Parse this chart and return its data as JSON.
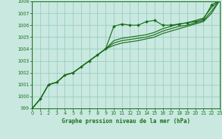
{
  "bg_color": "#c8e8e0",
  "grid_color": "#99ccbb",
  "line_color": "#1a6e1a",
  "marker_color": "#1a6e1a",
  "title": "Graphe pression niveau de la mer (hPa)",
  "xlim": [
    0,
    23
  ],
  "ylim": [
    999,
    1008
  ],
  "yticks": [
    999,
    1000,
    1001,
    1002,
    1003,
    1004,
    1005,
    1006,
    1007,
    1008
  ],
  "xticks": [
    0,
    1,
    2,
    3,
    4,
    5,
    6,
    7,
    8,
    9,
    10,
    11,
    12,
    13,
    14,
    15,
    16,
    17,
    18,
    19,
    20,
    21,
    22,
    23
  ],
  "main_line": {
    "x": [
      0,
      1,
      2,
      3,
      4,
      5,
      6,
      7,
      8,
      9,
      10,
      11,
      12,
      13,
      14,
      15,
      16,
      17,
      18,
      19,
      20,
      21,
      22,
      23
    ],
    "y": [
      999.0,
      999.8,
      1001.0,
      1001.2,
      1001.8,
      1002.0,
      1002.5,
      1003.0,
      1003.5,
      1004.0,
      1005.9,
      1006.1,
      1006.0,
      1006.0,
      1006.3,
      1006.4,
      1006.0,
      1006.0,
      1006.1,
      1006.2,
      1006.3,
      1006.5,
      1007.7,
      1008.1
    ]
  },
  "line2": {
    "x": [
      0,
      1,
      2,
      3,
      4,
      5,
      6,
      7,
      8,
      9,
      10,
      11,
      12,
      13,
      14,
      15,
      16,
      17,
      18,
      19,
      20,
      21,
      22,
      23
    ],
    "y": [
      999.0,
      999.8,
      1001.0,
      1001.2,
      1001.8,
      1002.0,
      1002.5,
      1003.0,
      1003.5,
      1004.0,
      1004.7,
      1004.9,
      1005.0,
      1005.1,
      1005.2,
      1005.4,
      1005.7,
      1005.9,
      1006.1,
      1006.2,
      1006.4,
      1006.6,
      1007.5,
      1008.1
    ]
  },
  "line3": {
    "x": [
      0,
      1,
      2,
      3,
      4,
      5,
      6,
      7,
      8,
      9,
      10,
      11,
      12,
      13,
      14,
      15,
      16,
      17,
      18,
      19,
      20,
      21,
      22,
      23
    ],
    "y": [
      999.0,
      999.8,
      1001.0,
      1001.2,
      1001.8,
      1002.0,
      1002.5,
      1003.0,
      1003.5,
      1004.0,
      1004.5,
      1004.7,
      1004.8,
      1004.9,
      1005.0,
      1005.2,
      1005.5,
      1005.7,
      1005.9,
      1006.0,
      1006.2,
      1006.4,
      1007.2,
      1008.1
    ]
  },
  "line4": {
    "x": [
      0,
      1,
      2,
      3,
      4,
      5,
      6,
      7,
      8,
      9,
      10,
      11,
      12,
      13,
      14,
      15,
      16,
      17,
      18,
      19,
      20,
      21,
      22,
      23
    ],
    "y": [
      999.0,
      999.8,
      1001.0,
      1001.2,
      1001.8,
      1002.0,
      1002.5,
      1003.0,
      1003.5,
      1004.0,
      1004.3,
      1004.5,
      1004.6,
      1004.7,
      1004.85,
      1005.0,
      1005.3,
      1005.5,
      1005.7,
      1005.9,
      1006.1,
      1006.3,
      1007.0,
      1008.1
    ]
  }
}
